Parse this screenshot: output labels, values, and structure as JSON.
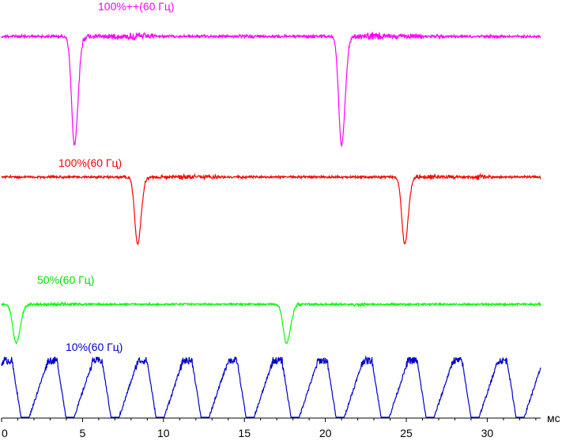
{
  "chart_data": {
    "type": "line",
    "xlabel": "мс",
    "xlim": [
      0,
      33.3
    ],
    "x_ticks": [
      0,
      5,
      10,
      15,
      20,
      25,
      30
    ],
    "x_tick_labels": [
      "0",
      "5",
      "10",
      "15",
      "20",
      "25",
      "30"
    ],
    "grid": false,
    "legend": "none",
    "series": [
      {
        "name": "100%++(60 Гц)",
        "color": "#ff00ff",
        "level": 0.8,
        "base": 0.92,
        "noise": 0.05,
        "dips": [
          {
            "t": 4.5,
            "depth": 0.92,
            "width": 0.28
          },
          {
            "t": 21.0,
            "depth": 0.92,
            "width": 0.28
          }
        ]
      },
      {
        "name": "100%(60 Гц)",
        "color": "#ff0000",
        "level": 0.8,
        "base": 0.9,
        "noise": 0.05,
        "dips": [
          {
            "t": 8.4,
            "depth": 0.9,
            "width": 0.28
          },
          {
            "t": 24.9,
            "depth": 0.9,
            "width": 0.28
          }
        ]
      },
      {
        "name": "50%(60 Гц)",
        "color": "#00ff00",
        "level": 0.5,
        "base": 0.8,
        "noise": 0.05,
        "dips": [
          {
            "t": 0.9,
            "depth": 0.85,
            "width": 0.32
          },
          {
            "t": 17.6,
            "depth": 0.85,
            "width": 0.32
          }
        ]
      },
      {
        "name": "10%(60 Гц)",
        "color": "#0000cc",
        "level": 0.1,
        "base": 0.0,
        "pulse_period_ms": 2.78,
        "pulse_peak": 0.92,
        "pulse_start_ms": 1.7
      }
    ]
  }
}
